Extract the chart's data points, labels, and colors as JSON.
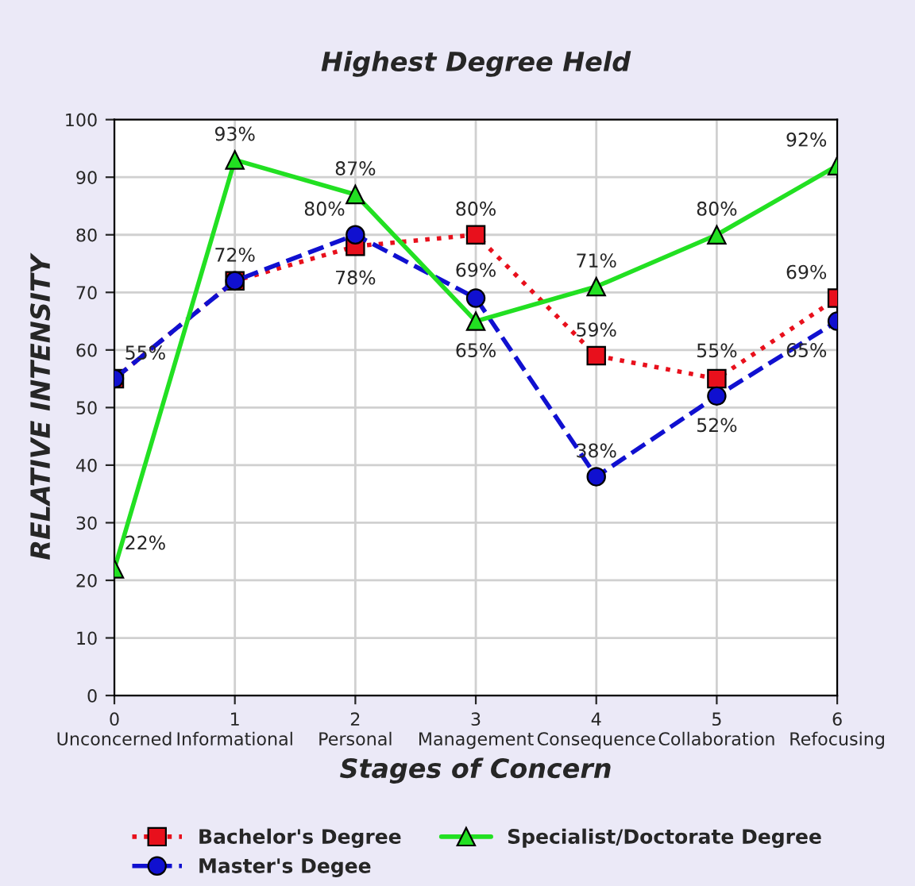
{
  "chart_data": {
    "type": "line",
    "title": "Highest Degree Held",
    "xlabel": "Stages of Concern",
    "ylabel": "RELATIVE INTENSITY",
    "x": [
      0,
      1,
      2,
      3,
      4,
      5,
      6
    ],
    "xlim": [
      0,
      6
    ],
    "xticks": [
      {
        "value": 0,
        "label": "0\nUnconcerned"
      },
      {
        "value": 1,
        "label": "1\nInformational"
      },
      {
        "value": 2,
        "label": "2\nPersonal"
      },
      {
        "value": 3,
        "label": "3\nManagement"
      },
      {
        "value": 4,
        "label": "4\nConsequence"
      },
      {
        "value": 5,
        "label": "5\nCollaboration"
      },
      {
        "value": 6,
        "label": "6\nRefocusing"
      }
    ],
    "ylim": [
      0,
      100
    ],
    "yticks": [
      0,
      10,
      20,
      30,
      40,
      50,
      60,
      70,
      80,
      90,
      100
    ],
    "grid": true,
    "legend": "bottom",
    "series": [
      {
        "name": "Bachelor's Degree",
        "color": "#e8101c",
        "marker": "square",
        "line_style": "dotted",
        "values": [
          55,
          72,
          78,
          80,
          59,
          55,
          69
        ],
        "value_labels": [
          "55%",
          "72%",
          "78%",
          "80%",
          "59%",
          "55%",
          "69%"
        ]
      },
      {
        "name": "Master's Degee",
        "color": "#1010d0",
        "marker": "circle",
        "line_style": "dashed",
        "values": [
          55,
          72,
          80,
          69,
          38,
          52,
          65
        ],
        "value_labels": [
          null,
          null,
          "80%",
          "69%",
          "38%",
          "52%",
          "65%"
        ]
      },
      {
        "name": "Specialist/Doctorate Degree",
        "color": "#22e022",
        "marker": "triangle",
        "line_style": "solid",
        "values": [
          22,
          93,
          87,
          65,
          71,
          80,
          92
        ],
        "value_labels": [
          "22%",
          "93%",
          "87%",
          "65%",
          "71%",
          "80%",
          "92%"
        ]
      }
    ]
  }
}
